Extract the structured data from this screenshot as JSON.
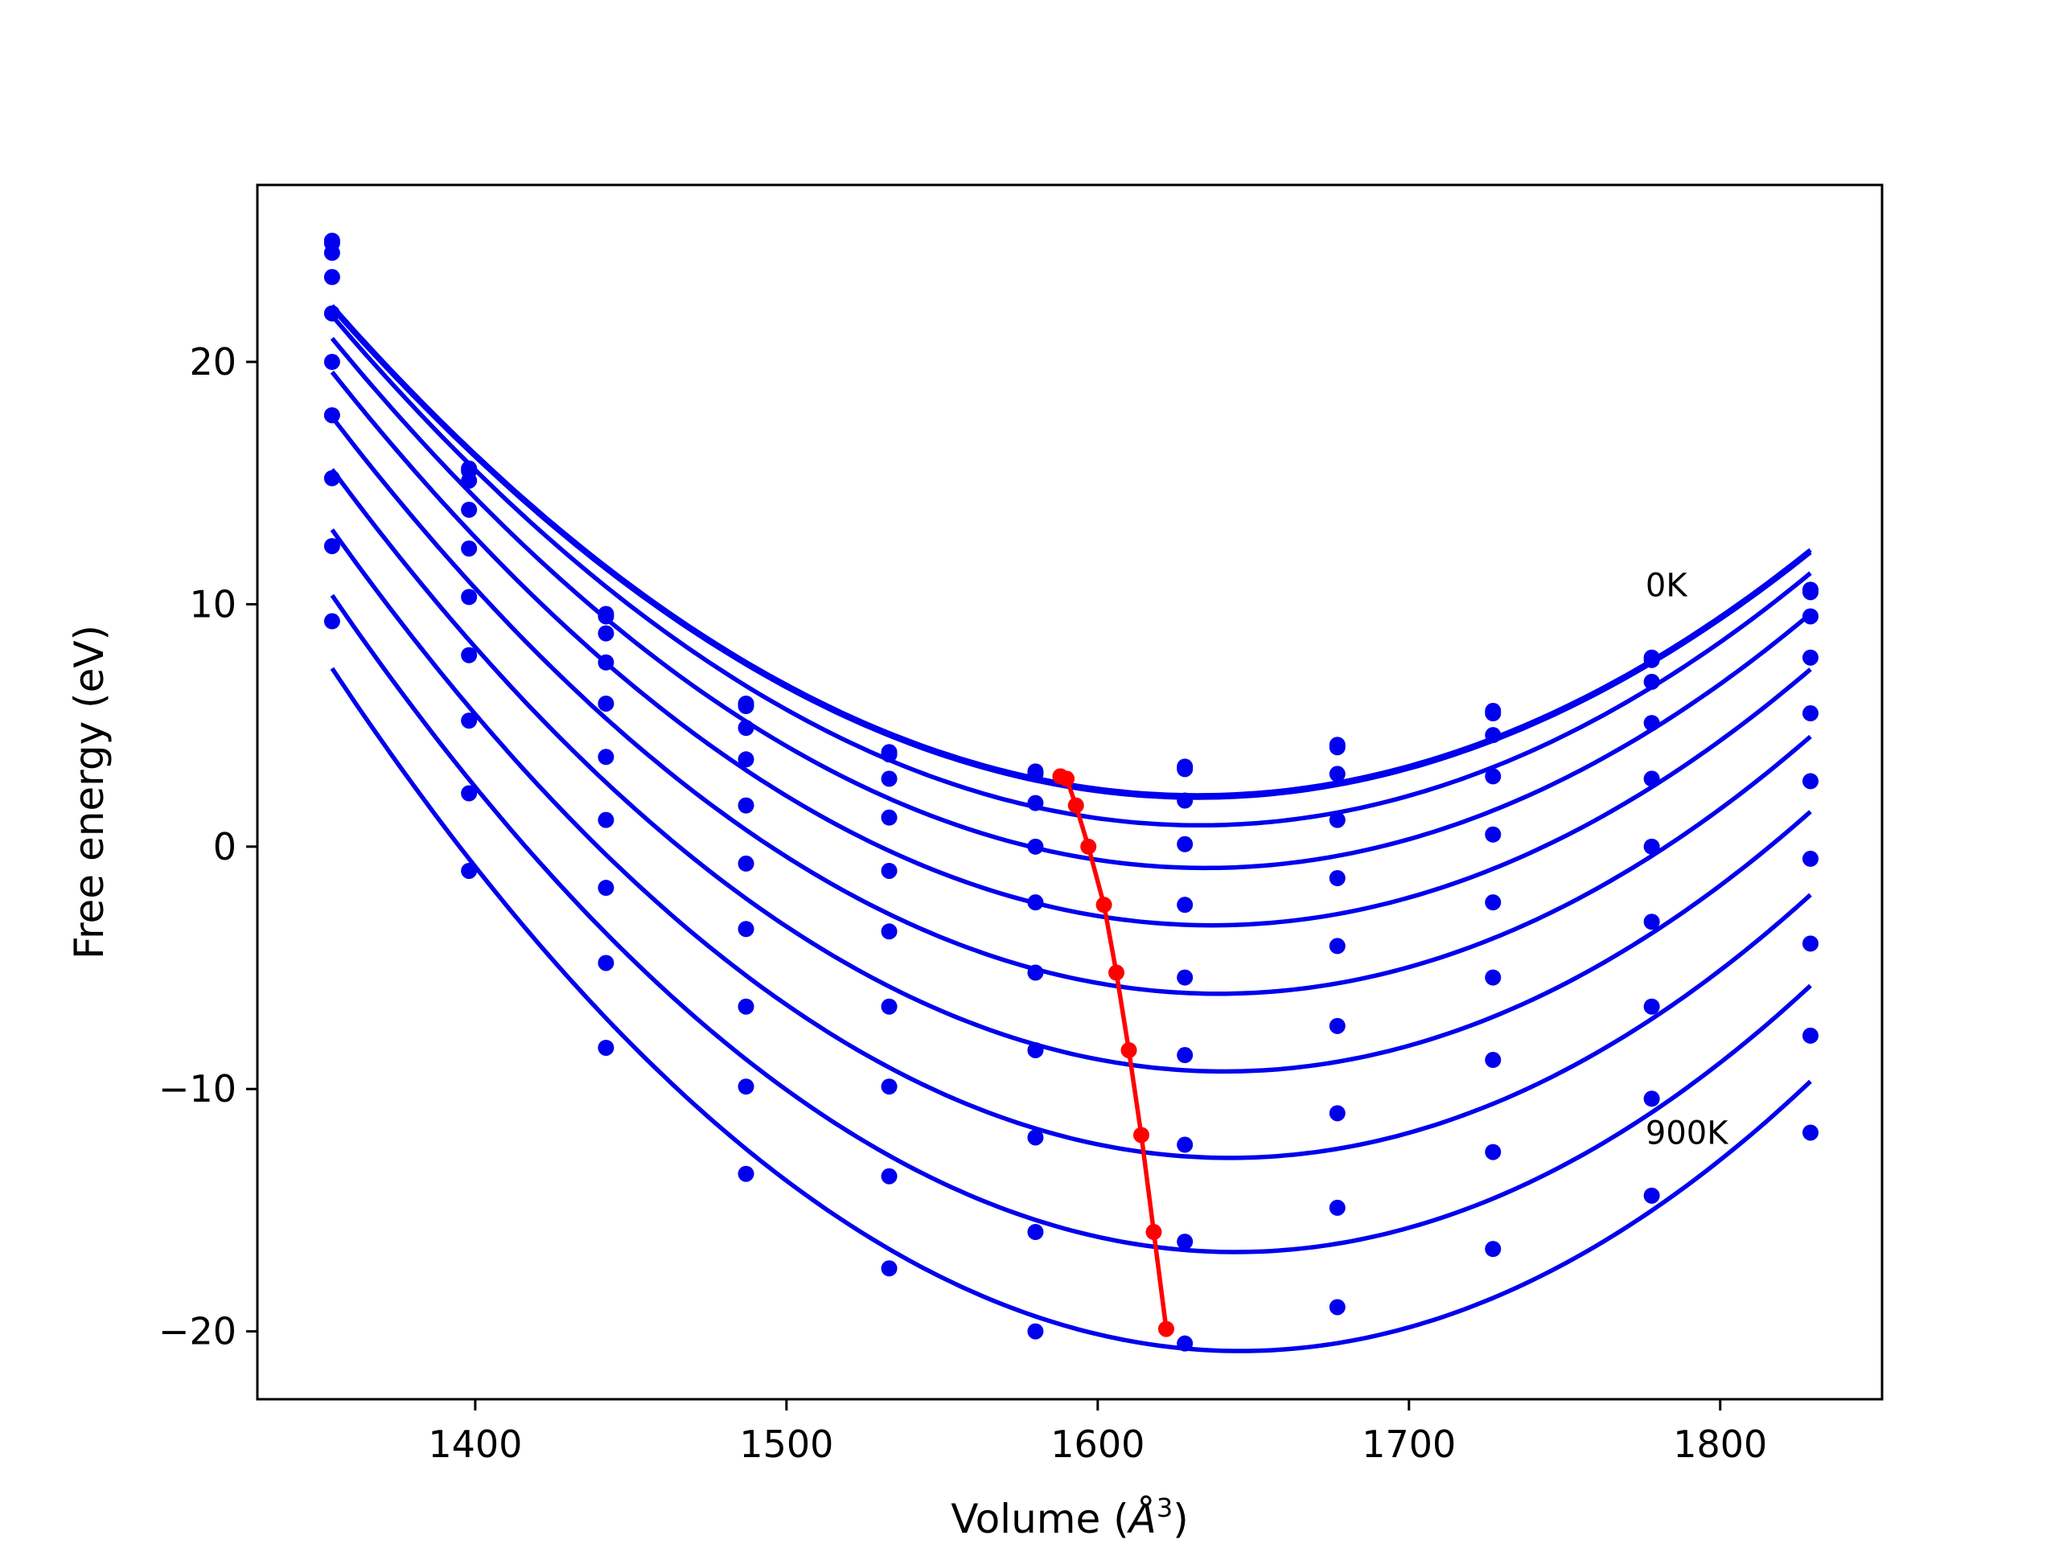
{
  "chart_data": {
    "type": "line",
    "xlabel": "Volume (Å³)",
    "xlabel_main": "Volume (",
    "xlabel_unit": "Å",
    "xlabel_exp": "3",
    "xlabel_close": ")",
    "ylabel": "Free energy (eV)",
    "xlim": [
      1330,
      1852
    ],
    "ylim": [
      -22.8,
      27.3
    ],
    "xticks": [
      1400,
      1500,
      1600,
      1700,
      1800
    ],
    "xtick_labels": [
      "1400",
      "1500",
      "1600",
      "1700",
      "1800"
    ],
    "yticks": [
      20,
      10,
      0,
      -10,
      -20
    ],
    "ytick_labels": [
      "20",
      "10",
      "0",
      "−10",
      "−20"
    ],
    "grid": false,
    "colors": {
      "curves": "#0000ee",
      "minimum_path": "#ff0000",
      "frame": "#000000"
    },
    "annotations": [
      {
        "text": "0K",
        "x": 1776,
        "y": 10.8
      },
      {
        "text": "900K",
        "x": 1776,
        "y": -11.8
      }
    ],
    "volumes": [
      1354,
      1398,
      1442,
      1487,
      1533,
      1580,
      1628,
      1677,
      1727,
      1778,
      1829
    ],
    "series": [
      {
        "points": [
          25.0,
          15.6,
          9.6,
          5.9,
          3.9,
          3.1,
          3.3,
          4.2,
          5.6,
          7.8,
          10.6
        ]
      },
      {
        "points": [
          24.9,
          15.5,
          9.5,
          5.8,
          3.8,
          3.0,
          3.2,
          4.1,
          5.5,
          7.7,
          10.5
        ]
      },
      {
        "points": [
          24.5,
          15.1,
          8.8,
          4.9,
          2.8,
          1.8,
          1.9,
          3.0,
          4.6,
          6.8,
          9.5
        ]
      },
      {
        "points": [
          23.5,
          13.9,
          7.6,
          3.6,
          1.2,
          0.0,
          0.1,
          1.1,
          2.9,
          5.1,
          7.8
        ]
      },
      {
        "points": [
          22.0,
          12.3,
          5.9,
          1.7,
          -1.0,
          -2.3,
          -2.4,
          -1.3,
          0.5,
          2.8,
          5.5
        ]
      },
      {
        "points": [
          20.0,
          10.3,
          3.7,
          -0.7,
          -3.5,
          -5.2,
          -5.4,
          -4.1,
          -2.3,
          0.0,
          2.7
        ]
      },
      {
        "points": [
          17.8,
          7.9,
          1.1,
          -3.4,
          -6.6,
          -8.4,
          -8.6,
          -7.4,
          -5.4,
          -3.1,
          -0.5
        ]
      },
      {
        "points": [
          15.2,
          5.2,
          -1.7,
          -6.6,
          -9.9,
          -12.0,
          -12.3,
          -11.0,
          -8.8,
          -6.6,
          -4.0
        ]
      },
      {
        "points": [
          12.4,
          2.2,
          -4.8,
          -9.9,
          -13.6,
          -15.9,
          -16.3,
          -14.9,
          -12.6,
          -10.4,
          -7.8
        ]
      },
      {
        "points": [
          9.3,
          -1.0,
          -8.3,
          -13.5,
          -17.4,
          -20.0,
          -20.5,
          -19.0,
          -16.6,
          -14.4,
          -11.8
        ]
      }
    ],
    "minimum_path": {
      "x": [
        1588,
        1590,
        1593,
        1597,
        1602,
        1606,
        1610,
        1614,
        1618,
        1622
      ],
      "y": [
        2.9,
        2.8,
        1.7,
        0.0,
        -2.4,
        -5.2,
        -8.4,
        -11.9,
        -15.9,
        -19.9
      ]
    }
  }
}
